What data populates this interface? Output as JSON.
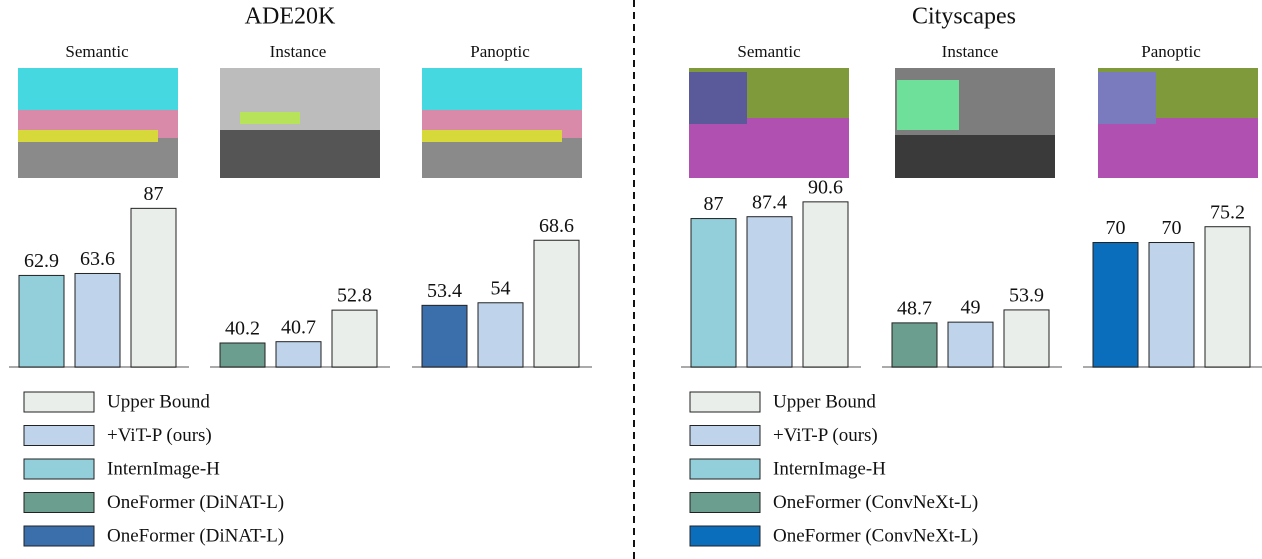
{
  "chart_data": [
    {
      "title": "ADE20K",
      "legend": [
        {
          "name": "Upper Bound",
          "color": "#e9eeea"
        },
        {
          "name": "+ViT-P (ours)",
          "color": "#bfd3ea"
        },
        {
          "name": "InternImage-H",
          "color": "#93cedb"
        },
        {
          "name": "OneFormer (DiNAT-L)",
          "color": "#6b9e8f"
        },
        {
          "name": "OneFormer (DiNAT-L)",
          "color": "#3a6fab"
        }
      ],
      "charts": [
        {
          "type": "bar",
          "title": "Semantic",
          "values": [
            62.9,
            63.6,
            87
          ],
          "colors": [
            "#93cedb",
            "#bfd3ea",
            "#e9eeea"
          ],
          "ylim": [
            30,
            90
          ]
        },
        {
          "type": "bar",
          "title": "Instance",
          "values": [
            40.2,
            40.7,
            52.8
          ],
          "colors": [
            "#6b9e8f",
            "#bfd3ea",
            "#e9eeea"
          ],
          "ylim": [
            31,
            95
          ]
        },
        {
          "type": "bar",
          "title": "Panoptic",
          "values": [
            53.4,
            54,
            68.6
          ],
          "colors": [
            "#3a6fab",
            "#bfd3ea",
            "#e9eeea"
          ],
          "ylim": [
            39,
            78
          ]
        }
      ]
    },
    {
      "title": "Cityscapes",
      "legend": [
        {
          "name": "Upper Bound",
          "color": "#e9eeea"
        },
        {
          "name": "+ViT-P (ours)",
          "color": "#bfd3ea"
        },
        {
          "name": "InternImage-H",
          "color": "#93cedb"
        },
        {
          "name": "OneFormer (ConvNeXt-L)",
          "color": "#6b9e8f"
        },
        {
          "name": "OneFormer (ConvNeXt-L)",
          "color": "#0a6ebd"
        }
      ],
      "charts": [
        {
          "type": "bar",
          "title": "Semantic",
          "values": [
            87,
            87.4,
            90.6
          ],
          "colors": [
            "#93cedb",
            "#bfd3ea",
            "#e9eeea"
          ],
          "ylim": [
            55,
            91
          ]
        },
        {
          "type": "bar",
          "title": "Instance",
          "values": [
            48.7,
            49,
            53.9
          ],
          "colors": [
            "#6b9e8f",
            "#bfd3ea",
            "#e9eeea"
          ],
          "ylim": [
            31,
            98
          ]
        },
        {
          "type": "bar",
          "title": "Panoptic",
          "values": [
            70,
            70,
            75.2
          ],
          "colors": [
            "#0a6ebd",
            "#bfd3ea",
            "#e9eeea"
          ],
          "ylim": [
            29,
            84
          ]
        }
      ]
    }
  ]
}
